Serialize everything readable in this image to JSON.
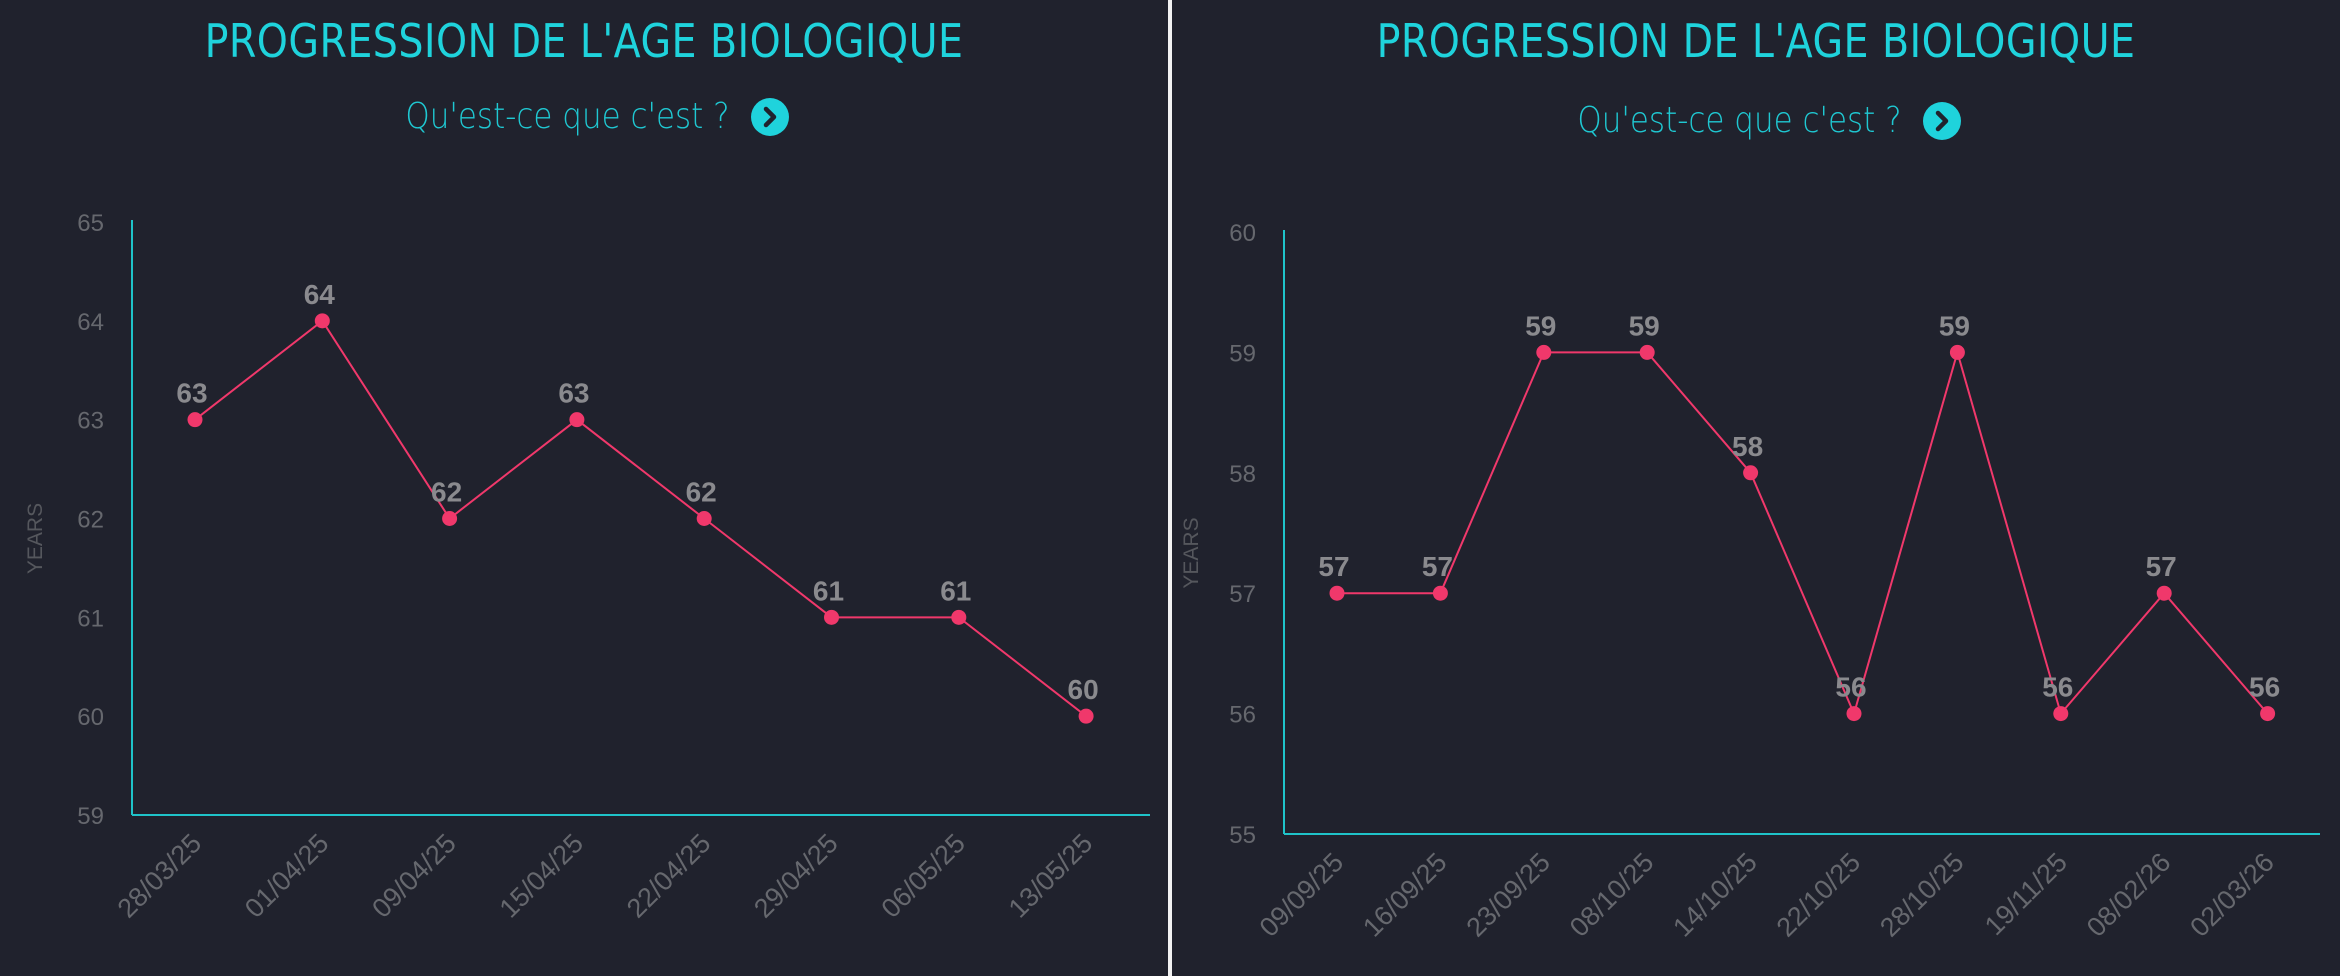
{
  "theme": {
    "background": "#20222d",
    "accent": "#1fd3dc",
    "axis_color": "#1fc3c9",
    "line_color": "#f0386b",
    "tick_color": "#66686e",
    "label_color": "#8a8a8e",
    "divider_color": "#f2f2f2"
  },
  "panels": [
    {
      "title": "PROGRESSION DE L'AGE BIOLOGIQUE",
      "subtitle": "Qu'est-ce que c'est ?",
      "info_icon": "chevron-right-circle-icon"
    },
    {
      "title": "PROGRESSION DE L'AGE BIOLOGIQUE",
      "subtitle": "Qu'est-ce que c'est ?",
      "info_icon": "chevron-right-circle-icon"
    }
  ],
  "chart_data": [
    {
      "type": "line",
      "title": "PROGRESSION DE L'AGE BIOLOGIQUE",
      "xlabel": "",
      "ylabel": "YEARS",
      "ylim": [
        59,
        65
      ],
      "yticks": [
        59,
        60,
        61,
        62,
        63,
        64,
        65
      ],
      "grid": false,
      "legend": null,
      "categories": [
        "28/03/25",
        "01/04/25",
        "09/04/25",
        "15/04/25",
        "22/04/25",
        "29/04/25",
        "06/05/25",
        "13/05/25"
      ],
      "values": [
        63,
        64,
        62,
        63,
        62,
        61,
        61,
        60
      ],
      "data_labels": true
    },
    {
      "type": "line",
      "title": "PROGRESSION DE L'AGE BIOLOGIQUE",
      "xlabel": "",
      "ylabel": "YEARS",
      "ylim": [
        55,
        60
      ],
      "yticks": [
        55,
        56,
        57,
        58,
        59,
        60
      ],
      "grid": false,
      "legend": null,
      "categories": [
        "09/09/25",
        "16/09/25",
        "23/09/25",
        "08/10/25",
        "14/10/25",
        "22/10/25",
        "28/10/25",
        "19/11/25",
        "08/02/26",
        "02/03/26"
      ],
      "values": [
        57,
        57,
        59,
        59,
        58,
        56,
        59,
        56,
        57,
        56
      ],
      "data_labels": true
    }
  ]
}
